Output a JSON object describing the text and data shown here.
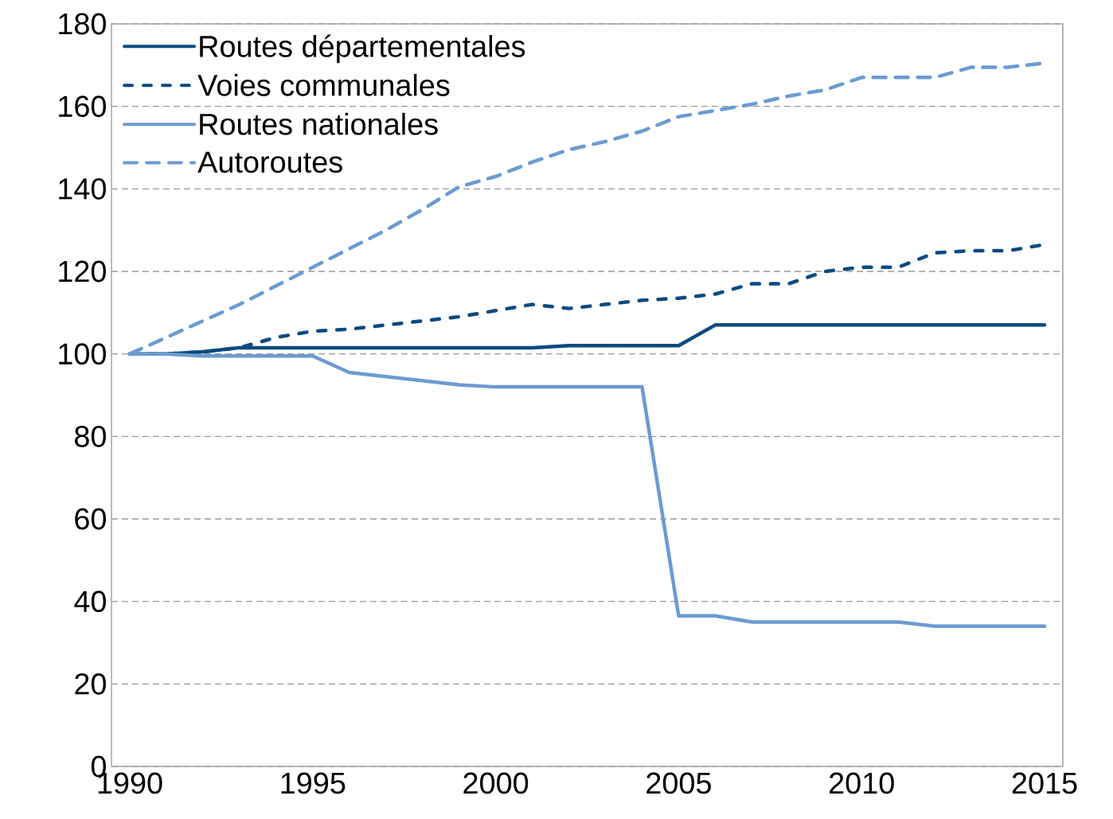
{
  "chart_data": {
    "type": "line",
    "x": [
      1990,
      1991,
      1992,
      1993,
      1994,
      1995,
      1996,
      1997,
      1998,
      1999,
      2000,
      2001,
      2002,
      2003,
      2004,
      2005,
      2006,
      2007,
      2008,
      2009,
      2010,
      2011,
      2012,
      2013,
      2014,
      2015
    ],
    "series": [
      {
        "name": "Routes départementales",
        "color": "#0b4a80",
        "line_style": "solid",
        "values": [
          100,
          100,
          100.5,
          101.5,
          101.5,
          101.5,
          101.5,
          101.5,
          101.5,
          101.5,
          101.5,
          101.5,
          102,
          102,
          102,
          102,
          107,
          107,
          107,
          107,
          107,
          107,
          107,
          107,
          107,
          107
        ]
      },
      {
        "name": "Voies communales",
        "color": "#0b4a80",
        "line_style": "dotted",
        "values": [
          100,
          100,
          100.5,
          101.5,
          104,
          105.5,
          106,
          107,
          108,
          109,
          110.5,
          112,
          111,
          112,
          113,
          113.5,
          114.5,
          117,
          117,
          120,
          121,
          121,
          124.5,
          125,
          125,
          126.5
        ]
      },
      {
        "name": "Routes nationales",
        "color": "#6b9bd1",
        "line_style": "solid",
        "values": [
          100,
          100,
          99.5,
          99.5,
          99.5,
          99.5,
          95.5,
          94.5,
          93.5,
          92.5,
          92,
          92,
          92,
          92,
          92,
          36.5,
          36.5,
          35,
          35,
          35,
          35,
          35,
          34,
          34,
          34,
          34
        ]
      },
      {
        "name": "Autoroutes",
        "color": "#6b9bd1",
        "line_style": "dashed",
        "values": [
          100,
          104,
          108,
          112,
          116.5,
          121,
          125.5,
          130,
          135,
          140.5,
          143,
          146.5,
          149.5,
          151.5,
          154,
          157.5,
          159,
          160.5,
          162.5,
          164,
          167,
          167,
          167,
          169.5,
          169.5,
          170.5
        ]
      }
    ],
    "xlim": [
      1989.5,
      2015.5
    ],
    "xticks": [
      1990,
      1995,
      2000,
      2005,
      2010,
      2015
    ],
    "ylim": [
      0,
      180
    ],
    "yticks": [
      0,
      20,
      40,
      60,
      80,
      100,
      120,
      140,
      160,
      180
    ],
    "grid": "y",
    "legend": "top left"
  }
}
